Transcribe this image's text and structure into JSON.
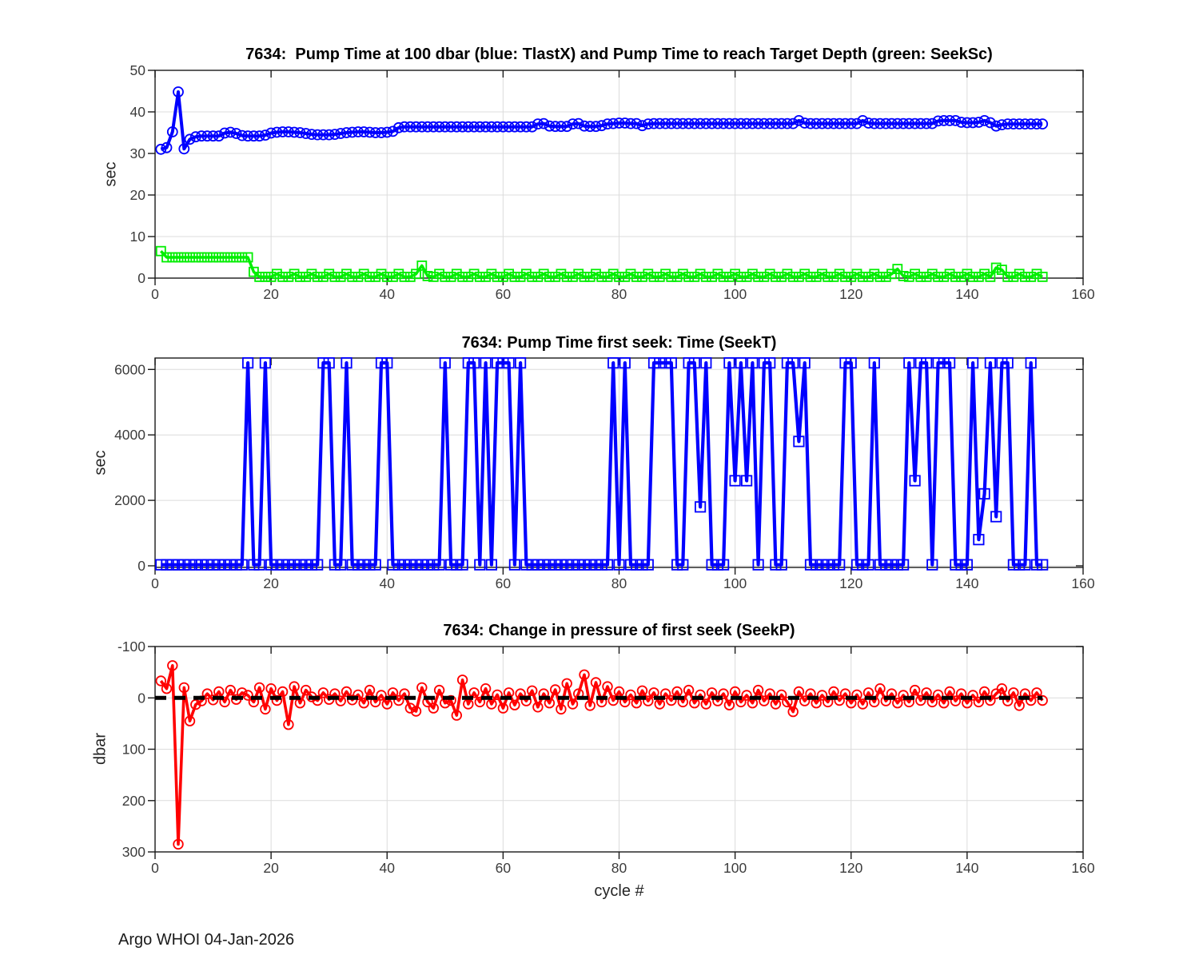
{
  "meta": {
    "footer": "Argo WHOI 04-Jan-2026"
  },
  "chart_data": [
    {
      "type": "line",
      "title": "7634:  Pump Time at 100 dbar (blue: TlastX) and Pump Time to reach Target Depth (green: SeekSc)",
      "ylabel": "sec",
      "xlabel": "",
      "xlim": [
        0,
        160
      ],
      "ylim": [
        0,
        50
      ],
      "xticks": [
        0,
        20,
        40,
        60,
        80,
        100,
        120,
        140,
        160
      ],
      "yticks": [
        0,
        10,
        20,
        30,
        40,
        50
      ],
      "y_reversed": false,
      "grid": true,
      "x_start": 1,
      "series": [
        {
          "name": "TlastX",
          "color": "#0000ff",
          "marker": "circle",
          "values": [
            31,
            31.4,
            35.2,
            44.8,
            31.1,
            33.4,
            34,
            34.2,
            34.2,
            34.2,
            34.2,
            34.9,
            35.1,
            34.8,
            34.3,
            34.2,
            34.2,
            34.2,
            34.4,
            34.9,
            35.1,
            35.2,
            35.2,
            35.1,
            35,
            34.8,
            34.6,
            34.5,
            34.5,
            34.5,
            34.6,
            34.8,
            35,
            35.1,
            35.2,
            35.2,
            35.1,
            35,
            35,
            35.1,
            35.3,
            36.2,
            36.4,
            36.4,
            36.4,
            36.4,
            36.4,
            36.4,
            36.4,
            36.4,
            36.4,
            36.4,
            36.4,
            36.4,
            36.4,
            36.4,
            36.4,
            36.4,
            36.4,
            36.4,
            36.4,
            36.4,
            36.4,
            36.4,
            36.4,
            37.1,
            37.2,
            36.6,
            36.5,
            36.5,
            36.5,
            37.1,
            37.2,
            36.6,
            36.5,
            36.5,
            36.7,
            37.1,
            37.2,
            37.3,
            37.3,
            37.2,
            37.2,
            36.7,
            37.1,
            37.2,
            37.2,
            37.2,
            37.2,
            37.2,
            37.2,
            37.2,
            37.2,
            37.2,
            37.2,
            37.2,
            37.2,
            37.2,
            37.2,
            37.2,
            37.2,
            37.2,
            37.2,
            37.2,
            37.2,
            37.2,
            37.2,
            37.2,
            37.2,
            37.2,
            37.9,
            37.3,
            37.2,
            37.2,
            37.2,
            37.2,
            37.2,
            37.2,
            37.2,
            37.2,
            37.2,
            37.9,
            37.3,
            37.2,
            37.2,
            37.2,
            37.2,
            37.2,
            37.2,
            37.2,
            37.2,
            37.2,
            37.2,
            37.2,
            37.8,
            37.9,
            37.9,
            37.9,
            37.5,
            37.4,
            37.4,
            37.5,
            37.9,
            37.4,
            36.6,
            36.9,
            37.1,
            37.1,
            37.1,
            37.1,
            37.1,
            37.1,
            37.1
          ]
        },
        {
          "name": "SeekSc",
          "color": "#00ee00",
          "marker": "square",
          "values": [
            6.5,
            5,
            5,
            5,
            5,
            5,
            5,
            5,
            5,
            5,
            5,
            5,
            5,
            5,
            5,
            5,
            1.5,
            0.3,
            0.3,
            0.3,
            1,
            0.3,
            0.3,
            1,
            0.3,
            0.3,
            1,
            0.3,
            0.3,
            1,
            0.3,
            0.3,
            1,
            0.3,
            0.3,
            1,
            0.3,
            0.3,
            1,
            0.3,
            0.3,
            1,
            0.3,
            0.3,
            1,
            3,
            0.5,
            0.3,
            1,
            0.3,
            0.3,
            1,
            0.3,
            0.3,
            1,
            0.3,
            0.3,
            1,
            0.3,
            0.3,
            1,
            0.3,
            0.3,
            1,
            0.3,
            0.3,
            1,
            0.3,
            0.3,
            1,
            0.3,
            0.3,
            1,
            0.3,
            0.3,
            1,
            0.3,
            0.3,
            1,
            0.3,
            0.3,
            1,
            0.3,
            0.3,
            1,
            0.3,
            0.3,
            1,
            0.3,
            0.3,
            1,
            0.3,
            0.3,
            1,
            0.3,
            0.3,
            1,
            0.3,
            0.3,
            1,
            0.3,
            0.3,
            1,
            0.3,
            0.3,
            1,
            0.3,
            0.3,
            1,
            0.3,
            0.3,
            1,
            0.3,
            0.3,
            1,
            0.3,
            0.3,
            1,
            0.3,
            0.3,
            1,
            0.3,
            0.3,
            1,
            0.3,
            0.3,
            1,
            2.2,
            0.5,
            0.3,
            1,
            0.3,
            0.3,
            1,
            0.3,
            0.3,
            1,
            0.3,
            0.3,
            1,
            0.3,
            0.3,
            1,
            0.3,
            2.5,
            2,
            0.3,
            0.3,
            1,
            0.3,
            0.3,
            1,
            0.3
          ]
        }
      ]
    },
    {
      "type": "line",
      "title": "7634: Pump Time first seek: Time (SeekT)",
      "ylabel": "sec",
      "xlabel": "",
      "xlim": [
        0,
        160
      ],
      "ylim": [
        -50,
        6350
      ],
      "xticks": [
        0,
        20,
        40,
        60,
        80,
        100,
        120,
        140,
        160
      ],
      "yticks": [
        0,
        2000,
        4000,
        6000
      ],
      "y_reversed": false,
      "grid": true,
      "x_start": 1,
      "series": [
        {
          "name": "SeekT",
          "color": "#0000ff",
          "marker": "square",
          "values": [
            30,
            30,
            30,
            30,
            30,
            30,
            30,
            30,
            30,
            30,
            30,
            30,
            30,
            30,
            30,
            6200,
            30,
            30,
            6200,
            30,
            30,
            30,
            30,
            30,
            30,
            30,
            30,
            30,
            6200,
            6200,
            30,
            30,
            6200,
            30,
            30,
            30,
            30,
            30,
            6200,
            6200,
            30,
            30,
            30,
            30,
            30,
            30,
            30,
            30,
            30,
            6200,
            30,
            30,
            30,
            6200,
            6200,
            30,
            6200,
            30,
            6200,
            6200,
            6200,
            30,
            6200,
            30,
            30,
            30,
            30,
            30,
            30,
            30,
            30,
            30,
            30,
            30,
            30,
            30,
            30,
            30,
            6200,
            30,
            6200,
            30,
            30,
            30,
            30,
            6200,
            6200,
            6200,
            6200,
            30,
            30,
            6200,
            6200,
            1800,
            6200,
            30,
            30,
            30,
            6200,
            2600,
            6200,
            2600,
            6200,
            30,
            6200,
            6200,
            30,
            30,
            6200,
            6200,
            3800,
            6200,
            30,
            30,
            30,
            30,
            30,
            30,
            6200,
            6200,
            30,
            30,
            30,
            6200,
            30,
            30,
            30,
            30,
            30,
            6200,
            2600,
            6200,
            6200,
            30,
            6200,
            6200,
            6200,
            30,
            30,
            30,
            6200,
            800,
            2200,
            6200,
            1500,
            6200,
            6200,
            30,
            30,
            30,
            6200,
            30,
            30
          ]
        }
      ]
    },
    {
      "type": "line",
      "title": "7634: Change in pressure of first seek (SeekP)",
      "ylabel": "dbar",
      "xlabel": "cycle #",
      "xlim": [
        0,
        160
      ],
      "ylim": [
        -100,
        300
      ],
      "xticks": [
        0,
        20,
        40,
        60,
        80,
        100,
        120,
        140,
        160
      ],
      "yticks": [
        -100,
        0,
        100,
        200,
        300
      ],
      "y_reversed": true,
      "grid": true,
      "zero_line": true,
      "zero_line_color": "#000000",
      "x_start": 1,
      "series": [
        {
          "name": "SeekP",
          "color": "#ff0000",
          "marker": "circle",
          "values": [
            -33,
            -18,
            -63,
            285,
            -20,
            45,
            13,
            6,
            -8,
            4,
            -12,
            8,
            -15,
            3,
            -10,
            -5,
            8,
            -20,
            22,
            -18,
            5,
            -12,
            52,
            -22,
            10,
            -15,
            -2,
            5,
            -10,
            3,
            -8,
            6,
            -12,
            4,
            -6,
            10,
            -15,
            8,
            -5,
            12,
            -10,
            5,
            -8,
            20,
            26,
            -20,
            8,
            20,
            -15,
            10,
            5,
            34,
            -35,
            12,
            -10,
            8,
            -18,
            12,
            -6,
            20,
            -10,
            14,
            -8,
            6,
            -14,
            18,
            -8,
            10,
            -16,
            22,
            -28,
            12,
            -8,
            -45,
            15,
            -30,
            8,
            -22,
            5,
            -12,
            8,
            -6,
            10,
            -14,
            6,
            -10,
            12,
            -8,
            5,
            -12,
            8,
            -15,
            10,
            -6,
            12,
            -10,
            6,
            -8,
            14,
            -12,
            8,
            -5,
            10,
            -15,
            6,
            -8,
            12,
            -6,
            8,
            27,
            -12,
            6,
            -8,
            10,
            -5,
            8,
            -12,
            5,
            -8,
            10,
            -6,
            12,
            -10,
            8,
            -18,
            6,
            -8,
            10,
            -5,
            8,
            -15,
            5,
            -10,
            8,
            -6,
            10,
            -12,
            6,
            -8,
            10,
            -5,
            8,
            -12,
            5,
            -8,
            -18,
            6,
            -10,
            15,
            -8,
            5,
            -10,
            5
          ]
        }
      ]
    }
  ]
}
